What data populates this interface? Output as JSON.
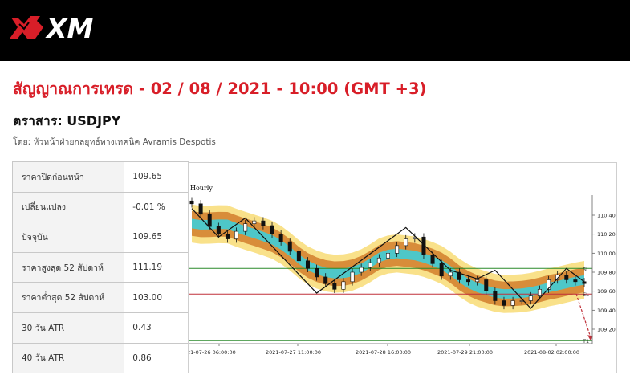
{
  "brand": {
    "logo_text": "XM",
    "accent": "#d81e28"
  },
  "header": {
    "title": "สัญญาณการเทรด - 02 / 08 / 2021 - 10:00 (GMT +3)",
    "instrument": "ตราสาร: USDJPY",
    "byline": "โดย: หัวหน้าฝ่ายกลยุทธ์ทางเทคนิค Avramis Despotis"
  },
  "stats": [
    {
      "label": "ราคาปิดก่อนหน้า",
      "value": "109.65"
    },
    {
      "label": "เปลี่ยนแปลง",
      "value": "-0.01 %"
    },
    {
      "label": "ปัจจุบัน",
      "value": "109.65"
    },
    {
      "label": "ราคาสูงสุด 52 สัปดาห์",
      "value": "111.19"
    },
    {
      "label": "ราคาต่ำสุด 52 สัปดาห์",
      "value": "103.00"
    },
    {
      "label": "30 วัน ATR",
      "value": "0.43"
    },
    {
      "label": "40 วัน ATR",
      "value": "0.86"
    }
  ],
  "chart_data": {
    "type": "candlestick",
    "timeframe_label": "Hourly",
    "x_tick_labels": [
      "21-07-26 06:00:00",
      "2021-07-27 11:00:00",
      "2021-07-28 16:00:00",
      "2021-07-29 21:00:00",
      "2021-08-02 02:00:00"
    ],
    "y_ticks": [
      110.4,
      110.2,
      110.0,
      109.8,
      109.6,
      109.4,
      109.2
    ],
    "ylim": [
      109.1,
      110.55
    ],
    "levels": [
      {
        "label": "SL",
        "value": 109.84,
        "color": "#2a8a2a"
      },
      {
        "label": "EL",
        "value": 109.57,
        "color": "#c0303a"
      },
      {
        "label": "T1",
        "value": 109.08,
        "color": "#2a8a2a"
      }
    ],
    "closes": [
      110.52,
      110.41,
      110.28,
      110.2,
      110.15,
      110.23,
      110.31,
      110.34,
      110.29,
      110.2,
      110.12,
      110.02,
      109.92,
      109.84,
      109.75,
      109.68,
      109.62,
      109.7,
      109.8,
      109.85,
      109.9,
      109.95,
      110.0,
      110.08,
      110.15,
      110.17,
      109.98,
      109.89,
      109.76,
      109.8,
      109.72,
      109.7,
      109.72,
      109.6,
      109.5,
      109.45,
      109.5,
      109.5,
      109.55,
      109.62,
      109.72,
      109.77,
      109.72,
      109.7,
      109.68
    ],
    "zigzag": [
      [
        0,
        110.47
      ],
      [
        3,
        110.17
      ],
      [
        6,
        110.37
      ],
      [
        14,
        109.58
      ],
      [
        24,
        110.27
      ],
      [
        29,
        109.82
      ],
      [
        32,
        109.73
      ],
      [
        34,
        109.82
      ],
      [
        38,
        109.42
      ],
      [
        42,
        109.84
      ],
      [
        44,
        109.7
      ]
    ],
    "arrow": {
      "from": 109.57,
      "to": 109.08,
      "color": "#c0303a"
    }
  }
}
